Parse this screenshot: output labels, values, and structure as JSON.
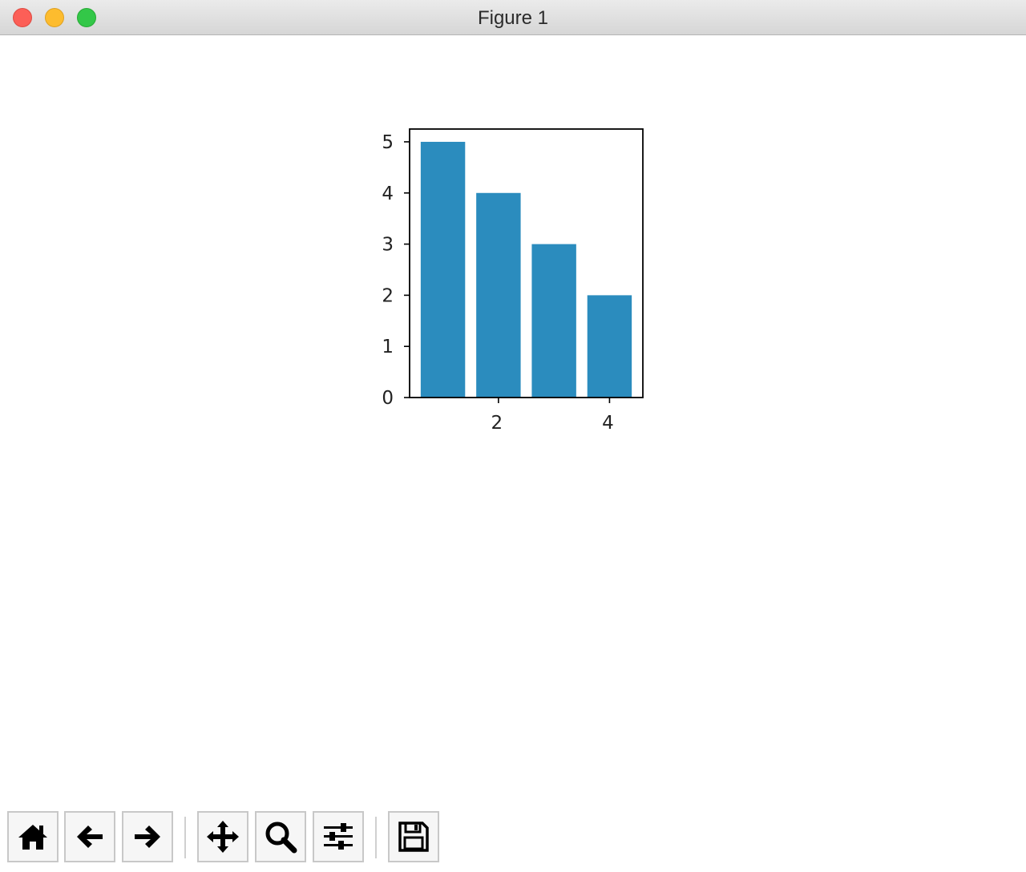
{
  "window": {
    "title": "Figure 1"
  },
  "toolbar": {
    "buttons": [
      {
        "name": "home",
        "icon": "home-icon"
      },
      {
        "name": "back",
        "icon": "back-arrow-icon"
      },
      {
        "name": "forward",
        "icon": "forward-arrow-icon"
      },
      {
        "name": "pan",
        "icon": "pan-move-icon"
      },
      {
        "name": "zoom",
        "icon": "zoom-magnifier-icon"
      },
      {
        "name": "configure-subplots",
        "icon": "sliders-icon"
      },
      {
        "name": "save",
        "icon": "save-floppy-icon"
      }
    ]
  },
  "chart_data": {
    "type": "bar",
    "x": [
      1,
      2,
      3,
      4
    ],
    "values": [
      5,
      4,
      3,
      2
    ],
    "xticks": [
      "2",
      "4"
    ],
    "yticks": [
      "0",
      "1",
      "2",
      "3",
      "4",
      "5"
    ],
    "xlim": [
      0.4,
      4.6
    ],
    "ylim": [
      0,
      5.25
    ],
    "bar_color": "#2b8cbe",
    "grid": false
  }
}
